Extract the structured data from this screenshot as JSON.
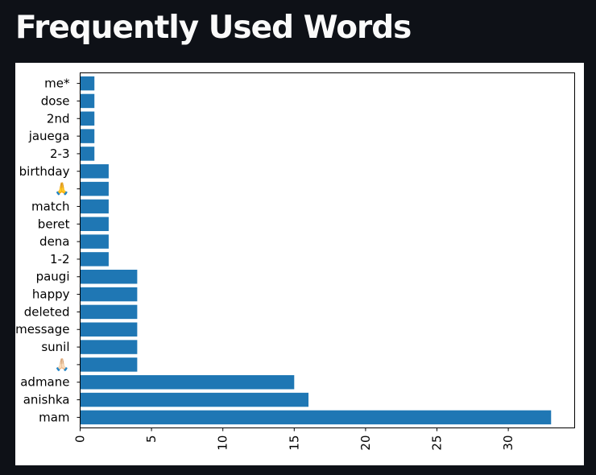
{
  "page": {
    "title": "Frequently Used Words"
  },
  "chart_data": {
    "type": "bar",
    "orientation": "horizontal",
    "categories": [
      "mam",
      "anishka",
      "admane",
      "🙏🏻",
      "sunil",
      "message",
      "deleted",
      "happy",
      "paugi",
      "1-2",
      "dena",
      "beret",
      "match",
      "🙏",
      "birthday",
      "2-3",
      "jauega",
      "2nd",
      "dose",
      "me*"
    ],
    "values": [
      33,
      16,
      15,
      4,
      4,
      4,
      4,
      4,
      4,
      2,
      2,
      2,
      2,
      2,
      2,
      1,
      1,
      1,
      1,
      1
    ],
    "xticks": [
      0,
      5,
      10,
      15,
      20,
      25,
      30
    ],
    "xlim": [
      0,
      34.65
    ],
    "bar_color": "#1f77b4",
    "grid": false,
    "legend": "none"
  }
}
